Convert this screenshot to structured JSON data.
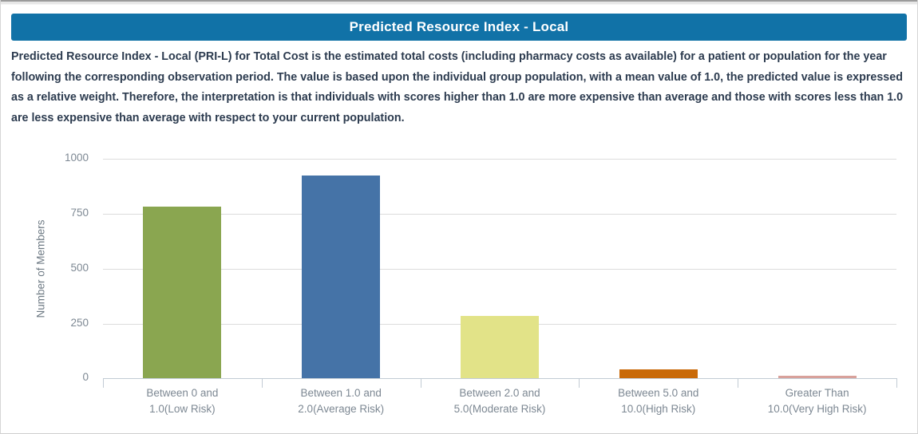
{
  "header": {
    "title": "Predicted Resource Index - Local"
  },
  "description": "Predicted Resource Index - Local (PRI-L) for Total Cost is the estimated total costs (including pharmacy costs as available) for a patient or population for the year following the corresponding observation period. The value is based upon the individual group population, with a mean value of 1.0, the predicted value is expressed as a relative weight. Therefore, the interpretation is that individuals with scores higher than 1.0 are more expensive than average and those with scores less than 1.0 are less expensive than average with respect to your current population.",
  "chart_data": {
    "type": "bar",
    "title": "Predicted Resource Index - Local",
    "xlabel": "",
    "ylabel": "Number of Members",
    "ylim": [
      0,
      1000
    ],
    "yticks": [
      0,
      250,
      500,
      750,
      1000
    ],
    "grid": true,
    "legend": false,
    "categories": [
      "Between 0 and\n1.0(Low Risk)",
      "Between 1.0 and\n2.0(Average Risk)",
      "Between 2.0 and\n5.0(Moderate Risk)",
      "Between 5.0 and\n10.0(High Risk)",
      "Greater Than\n10.0(Very High Risk)"
    ],
    "values": [
      785,
      925,
      285,
      40,
      12
    ],
    "bar_colors": [
      "#8aa650",
      "#4573a7",
      "#e2e388",
      "#c96a08",
      "#d8a19b"
    ]
  },
  "colors": {
    "header_background": "#1172a7",
    "header_text": "#ffffff",
    "description_text": "#2c3b4f",
    "gridline": "#dcdcdc",
    "axis": "#c2cbd4",
    "tick_label": "#7d8893"
  }
}
